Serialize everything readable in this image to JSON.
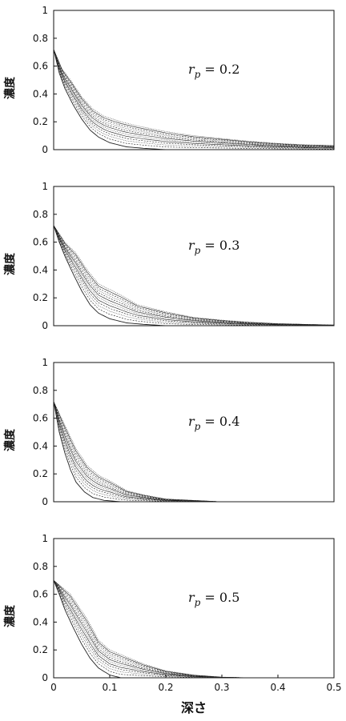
{
  "chart_data": [
    {
      "type": "line",
      "annotation": {
        "symbol": "r",
        "subscript": "p",
        "text": " = 0.2"
      },
      "ylabel": "濃度",
      "xlabel": "",
      "xlim": [
        0,
        0.5
      ],
      "ylim": [
        0,
        1
      ],
      "xticks": [],
      "yticks": [
        "0",
        "0.2",
        "0.4",
        "0.6",
        "0.8",
        "1"
      ],
      "y0": 0.72,
      "lower_profile": {
        "x": [
          0,
          0.01,
          0.02,
          0.035,
          0.05,
          0.065,
          0.08,
          0.1,
          0.13,
          0.16,
          0.2
        ],
        "y": [
          0.72,
          0.55,
          0.44,
          0.32,
          0.22,
          0.14,
          0.09,
          0.05,
          0.02,
          0.01,
          0.0
        ]
      },
      "upper_profile": {
        "x": [
          0,
          0.015,
          0.03,
          0.05,
          0.07,
          0.09,
          0.12,
          0.15,
          0.2,
          0.25,
          0.3,
          0.35,
          0.4,
          0.45,
          0.5
        ],
        "y": [
          0.72,
          0.58,
          0.5,
          0.38,
          0.29,
          0.24,
          0.2,
          0.17,
          0.13,
          0.1,
          0.08,
          0.06,
          0.045,
          0.035,
          0.03
        ]
      },
      "curve_count": 12
    },
    {
      "type": "line",
      "annotation": {
        "symbol": "r",
        "subscript": "p",
        "text": " = 0.3"
      },
      "ylabel": "濃度",
      "xlabel": "",
      "xlim": [
        0,
        0.5
      ],
      "ylim": [
        0,
        1
      ],
      "xticks": [],
      "yticks": [
        "0",
        "0.2",
        "0.4",
        "0.6",
        "0.8",
        "1"
      ],
      "y0": 0.72,
      "lower_profile": {
        "x": [
          0,
          0.01,
          0.02,
          0.035,
          0.05,
          0.065,
          0.08,
          0.1,
          0.13,
          0.16,
          0.2
        ],
        "y": [
          0.72,
          0.6,
          0.5,
          0.37,
          0.25,
          0.15,
          0.09,
          0.05,
          0.02,
          0.01,
          0.0
        ]
      },
      "upper_profile": {
        "x": [
          0,
          0.02,
          0.04,
          0.06,
          0.08,
          0.1,
          0.12,
          0.15,
          0.2,
          0.25,
          0.3,
          0.35,
          0.4,
          0.45,
          0.5
        ],
        "y": [
          0.72,
          0.6,
          0.52,
          0.4,
          0.3,
          0.26,
          0.22,
          0.15,
          0.1,
          0.06,
          0.04,
          0.025,
          0.015,
          0.01,
          0.005
        ]
      },
      "curve_count": 12
    },
    {
      "type": "line",
      "annotation": {
        "symbol": "r",
        "subscript": "p",
        "text": " = 0.4"
      },
      "ylabel": "濃度",
      "xlabel": "",
      "xlim": [
        0,
        0.5
      ],
      "ylim": [
        0,
        1
      ],
      "xticks": [],
      "yticks": [
        "0",
        "0.2",
        "0.4",
        "0.6",
        "0.8",
        "1"
      ],
      "y0": 0.72,
      "lower_profile": {
        "x": [
          0,
          0.01,
          0.02,
          0.03,
          0.04,
          0.055,
          0.07,
          0.09,
          0.12
        ],
        "y": [
          0.72,
          0.5,
          0.35,
          0.23,
          0.14,
          0.07,
          0.03,
          0.01,
          0.0
        ]
      },
      "upper_profile": {
        "x": [
          0,
          0.02,
          0.04,
          0.06,
          0.08,
          0.1,
          0.13,
          0.16,
          0.2,
          0.25,
          0.3
        ],
        "y": [
          0.72,
          0.55,
          0.38,
          0.26,
          0.19,
          0.15,
          0.08,
          0.05,
          0.02,
          0.01,
          0.0
        ]
      },
      "curve_count": 12
    },
    {
      "type": "line",
      "annotation": {
        "symbol": "r",
        "subscript": "p",
        "text": " = 0.5"
      },
      "ylabel": "濃度",
      "xlabel": "深さ",
      "xlim": [
        0,
        0.5
      ],
      "ylim": [
        0,
        1
      ],
      "xticks": [
        "0",
        "0.1",
        "0.2",
        "0.3",
        "0.4",
        "0.5"
      ],
      "yticks": [
        "0",
        "0.2",
        "0.4",
        "0.6",
        "0.8",
        "1"
      ],
      "y0": 0.7,
      "lower_profile": {
        "x": [
          0,
          0.01,
          0.02,
          0.035,
          0.05,
          0.065,
          0.08,
          0.1,
          0.12
        ],
        "y": [
          0.7,
          0.6,
          0.49,
          0.36,
          0.24,
          0.14,
          0.07,
          0.02,
          0.0
        ]
      },
      "upper_profile": {
        "x": [
          0,
          0.03,
          0.06,
          0.08,
          0.1,
          0.13,
          0.16,
          0.2,
          0.25,
          0.3,
          0.35
        ],
        "y": [
          0.7,
          0.6,
          0.42,
          0.27,
          0.2,
          0.15,
          0.1,
          0.05,
          0.02,
          0.005,
          0.0
        ]
      },
      "curve_count": 12
    }
  ]
}
